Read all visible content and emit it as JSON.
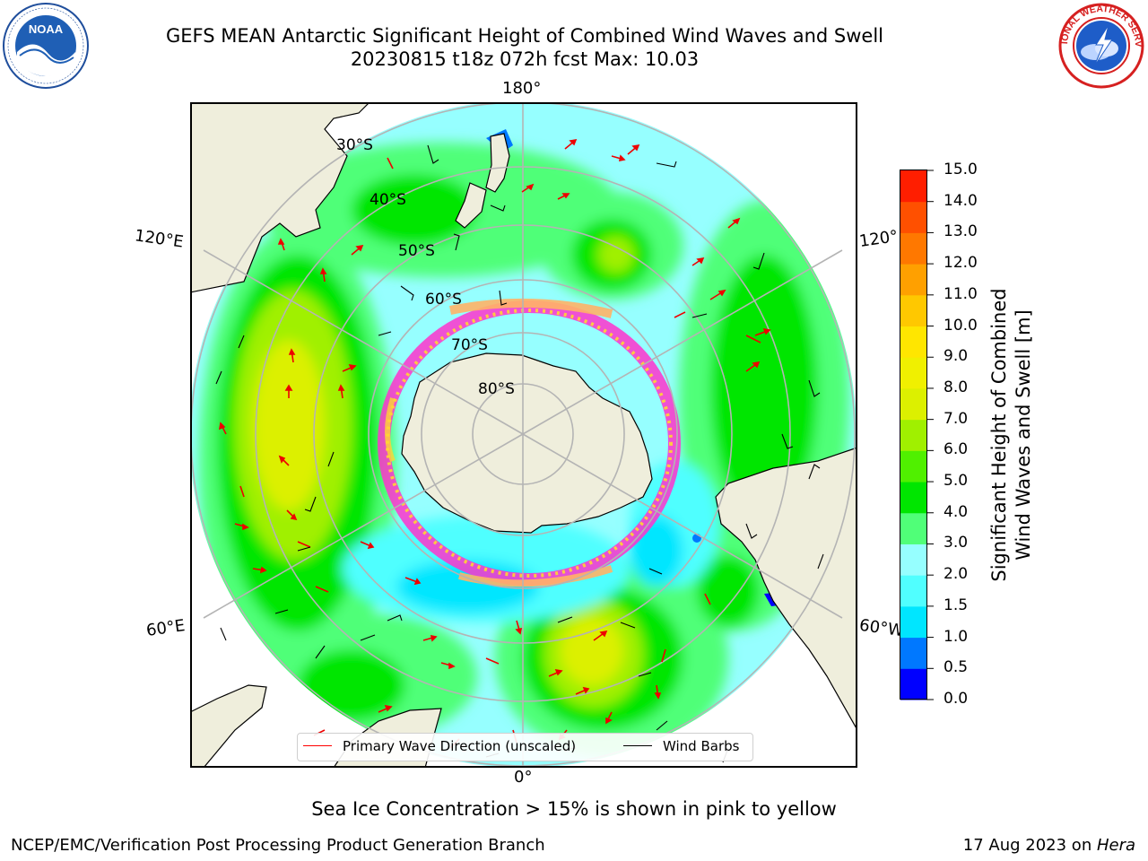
{
  "title_line1": "GEFS MEAN Antarctic Significant Height of Combined Wind Waves and Swell",
  "title_line2": "20230815 t18z 072h fcst   Max: 10.03",
  "lon_labels": {
    "top": "180°",
    "bottom": "0°",
    "upper_left": "120°E",
    "lower_left": "60°E",
    "upper_right": "120°",
    "lower_right": "60°W"
  },
  "lat_labels": [
    "30°S",
    "40°S",
    "50°S",
    "60°S",
    "70°S",
    "80°S"
  ],
  "colorbar": {
    "ticks": [
      "15.0",
      "14.0",
      "13.0",
      "12.0",
      "11.0",
      "10.0",
      "9.0",
      "8.0",
      "7.0",
      "6.0",
      "5.0",
      "4.0",
      "3.0",
      "2.0",
      "1.5",
      "1.0",
      "0.5",
      "0.0"
    ],
    "colors": [
      "#0000ff",
      "#0078ff",
      "#00e6ff",
      "#50ffff",
      "#96ffff",
      "#50ff78",
      "#00e600",
      "#50f000",
      "#a0f000",
      "#dcf000",
      "#f0f000",
      "#ffe600",
      "#ffc800",
      "#ffa000",
      "#ff7800",
      "#ff5000",
      "#ff1e00"
    ],
    "label_line1": "Significant Height of Combined",
    "label_line2": "Wind Waves and Swell [m]"
  },
  "legend": {
    "item1": "Primary Wave Direction (unscaled)",
    "item2": "Wind Barbs",
    "color1": "#ff0000",
    "color2": "#000000"
  },
  "sea_ice_note": "Sea Ice Concentration > 15% is shown in pink to yellow",
  "footer_left": "NCEP/EMC/Verification Post Processing Product Generation Branch",
  "footer_right_date": "17 Aug 2023 on ",
  "footer_right_host": "Hera",
  "logos": {
    "noaa": "NOAA",
    "nws": "NATIONAL WEATHER SERVICE"
  },
  "colors": {
    "land": "#efeedc",
    "grid": "#b4b4b4",
    "ice_pink": "#ff33cc",
    "ice_yellow": "#ffd633"
  }
}
